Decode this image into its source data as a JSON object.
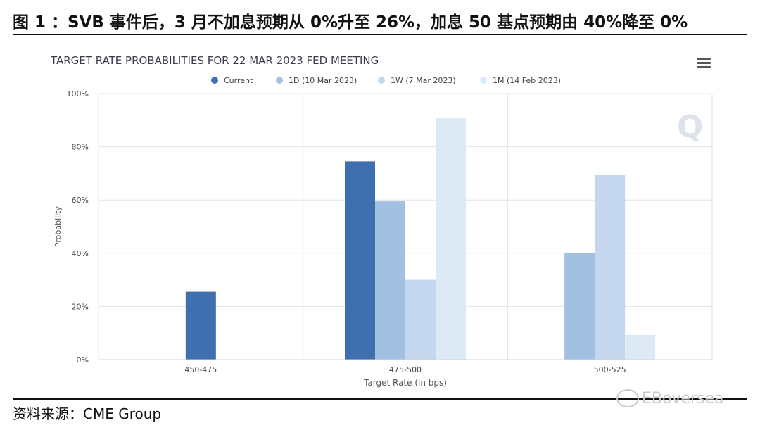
{
  "figure_title": "图 1 ：SVB 事件后，3 月不加息预期从 0%升至 26%，加息 50 基点预期由 40%降至 0%",
  "source": "资料来源：CME Group",
  "watermark": "EBoversea",
  "chart_data": {
    "type": "bar",
    "title": "TARGET RATE PROBABILITIES FOR 22 MAR 2023 FED MEETING",
    "xlabel": "Target Rate (in bps)",
    "ylabel": "Probability",
    "categories": [
      "450-475",
      "475-500",
      "500-525"
    ],
    "ylim": [
      0,
      100
    ],
    "yticks": [
      "0%",
      "20%",
      "40%",
      "60%",
      "80%",
      "100%"
    ],
    "grid": true,
    "legend_position": "top-center",
    "series": [
      {
        "name": "Current",
        "color": "#3e6fae",
        "values": [
          25.5,
          74.5,
          0
        ]
      },
      {
        "name": "1D (10 Mar 2023)",
        "color": "#a2c0e2",
        "values": [
          0,
          59.5,
          40
        ]
      },
      {
        "name": "1W (7 Mar 2023)",
        "color": "#c4d7ee",
        "values": [
          0,
          30,
          69.5
        ]
      },
      {
        "name": "1M (14 Feb 2023)",
        "color": "#ddeaf6",
        "values": [
          0,
          90.7,
          9.3
        ]
      }
    ]
  }
}
